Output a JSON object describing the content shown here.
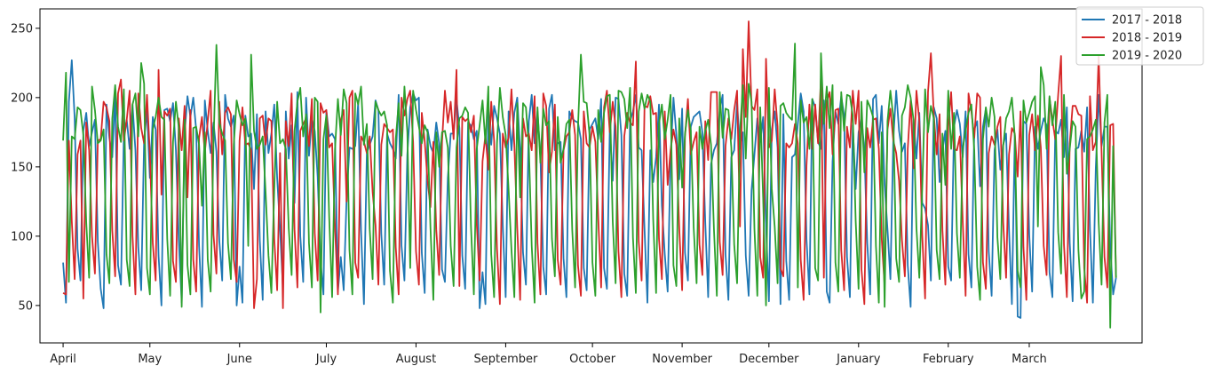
{
  "chart_data": {
    "type": "line",
    "title": "",
    "xlabel": "",
    "ylabel": "",
    "x_tick_labels": [
      "April",
      "May",
      "June",
      "July",
      "August",
      "September",
      "October",
      "November",
      "December",
      "January",
      "February",
      "March"
    ],
    "x_tick_days": [
      0,
      30,
      61,
      91,
      122,
      153,
      183,
      214,
      244,
      275,
      306,
      334
    ],
    "xlim_days": [
      -8,
      373
    ],
    "ylim": [
      23,
      264
    ],
    "y_ticks": [
      50,
      100,
      150,
      200,
      250
    ],
    "grid": false,
    "legend_position": "top-right",
    "series": [
      {
        "name": "2017 - 2018",
        "color": "#1f77b4",
        "seed": 11,
        "phase": 0,
        "base": 180,
        "low": 60,
        "y_first": 81,
        "y_last": 70,
        "overrides": {
          "1": 52,
          "3": 227,
          "14": 48,
          "60": 50,
          "95": 60,
          "144": 48,
          "184": 185,
          "248": 51,
          "264": 60,
          "288": 205,
          "330": 42,
          "331": 41
        }
      },
      {
        "name": "2018 - 2019",
        "color": "#d62728",
        "seed": 23,
        "phase": 2,
        "base": 183,
        "low": 62,
        "y_first": 59,
        "y_last": 70,
        "overrides": {
          "1": 58,
          "7": 55,
          "20": 213,
          "33": 220,
          "66": 48,
          "76": 48,
          "136": 220,
          "198": 226,
          "235": 235,
          "237": 255,
          "243": 228,
          "262": 215,
          "275": 205,
          "300": 232,
          "345": 230,
          "358": 230
        }
      },
      {
        "name": "2019 - 2020",
        "color": "#2ca02c",
        "seed": 37,
        "phase": 4,
        "base": 186,
        "low": 62,
        "y_first": 169,
        "y_last": 70,
        "overrides": {
          "1": 218,
          "27": 225,
          "41": 49,
          "53": 238,
          "65": 231,
          "89": 45,
          "121": 205,
          "179": 231,
          "243": 50,
          "253": 239,
          "262": 232,
          "284": 49,
          "338": 222,
          "353": 60,
          "362": 34
        }
      }
    ]
  }
}
